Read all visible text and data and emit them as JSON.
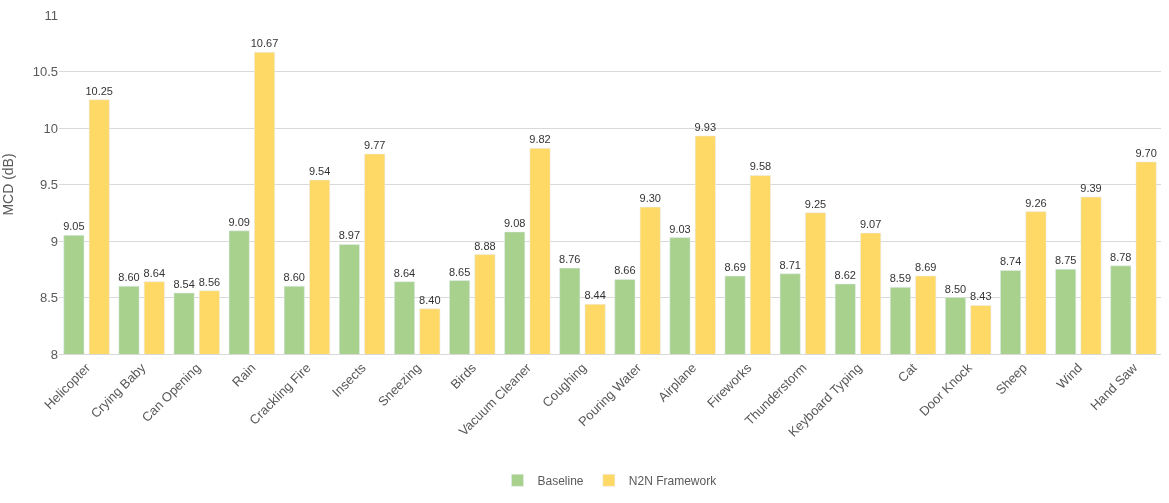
{
  "chart_data": {
    "type": "bar",
    "ylabel": "MCD (dB)",
    "categories": [
      "Helicopter",
      "Crying Baby",
      "Can Opening",
      "Rain",
      "Crackling Fire",
      "Insects",
      "Sneezing",
      "Birds",
      "Vacuum Cleaner",
      "Coughing",
      "Pouring Water",
      "Airplane",
      "Fireworks",
      "Thunderstorm",
      "Keyboard Typing",
      "Cat",
      "Door Knock",
      "Sheep",
      "Wind",
      "Hand Saw"
    ],
    "series": [
      {
        "name": "Baseline",
        "color": "#a9d18e",
        "values": [
          9.05,
          8.6,
          8.54,
          9.09,
          8.6,
          8.97,
          8.64,
          8.65,
          9.08,
          8.76,
          8.66,
          9.03,
          8.69,
          8.71,
          8.62,
          8.59,
          8.5,
          8.74,
          8.75,
          8.78
        ],
        "value_labels": [
          "9.05",
          "8.60",
          "8.54",
          "9.09",
          "8.60",
          "8.97",
          "8.64",
          "8.65",
          "9.08",
          "8.76",
          "8.66",
          "9.03",
          "8.69",
          "8.71",
          "8.62",
          "8.59",
          "8.50",
          "8.74",
          "8.75",
          "8.78"
        ]
      },
      {
        "name": "N2N Framework",
        "color": "#ffd966",
        "values": [
          10.25,
          8.64,
          8.56,
          10.67,
          9.54,
          9.77,
          8.4,
          8.88,
          9.82,
          8.44,
          9.3,
          9.93,
          9.58,
          9.25,
          9.07,
          8.69,
          8.43,
          9.26,
          9.39,
          9.7
        ],
        "value_labels": [
          "10.25",
          "8.64",
          "8.56",
          "10.67",
          "9.54",
          "9.77",
          "8.40",
          "8.88",
          "9.82",
          "8.44",
          "9.30",
          "9.93",
          "9.58",
          "9.25",
          "9.07",
          "8.69",
          "8.43",
          "9.26",
          "9.39",
          "9.70"
        ]
      }
    ],
    "ylim": [
      8,
      11
    ],
    "yticks": [
      8,
      8.5,
      9,
      9.5,
      10,
      10.5,
      11
    ],
    "grid": "y",
    "legend": "bottom"
  }
}
